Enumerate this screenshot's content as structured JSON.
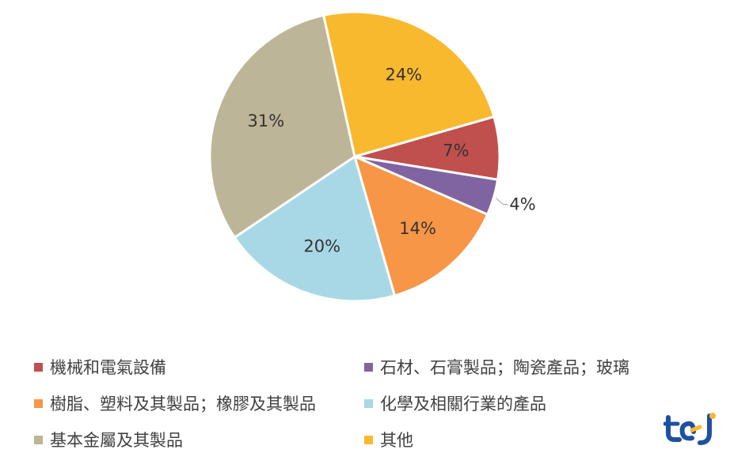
{
  "chart_data": {
    "type": "pie",
    "slices": [
      {
        "label": "機械和電氣設備",
        "value": 7,
        "display": "7%",
        "color": "#c0504d"
      },
      {
        "label": "石材、石膏製品；陶瓷產品；玻璃",
        "value": 4,
        "display": "4%",
        "color": "#8064a2"
      },
      {
        "label": "樹脂、塑料及其製品；橡膠及其製品",
        "value": 14,
        "display": "14%",
        "color": "#f79646"
      },
      {
        "label": "化學及相關行業的產品",
        "value": 20,
        "display": "20%",
        "color": "#a8d8e6"
      },
      {
        "label": "基本金屬及其製品",
        "value": 31,
        "display": "31%",
        "color": "#bdb597"
      },
      {
        "label": "其他",
        "value": 24,
        "display": "24%",
        "color": "#f9b92f"
      }
    ],
    "legend_placement": "bottom"
  },
  "logo": {
    "name": "tej-logo"
  }
}
